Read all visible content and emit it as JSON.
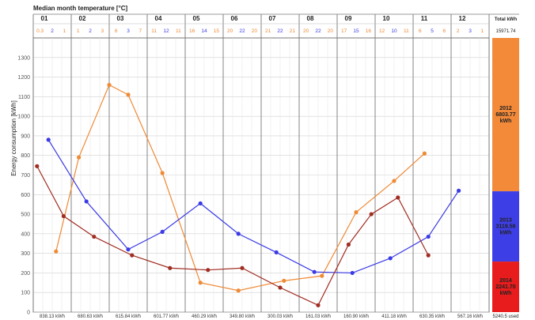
{
  "chart_data": {
    "type": "line",
    "title": "Median month temperature [°C]",
    "ylabel": "Energy consumption [kWh]",
    "ylim": [
      0,
      1400
    ],
    "yticks": [
      0,
      100,
      200,
      300,
      400,
      500,
      600,
      700,
      800,
      900,
      1000,
      1100,
      1200,
      1300
    ],
    "grid": true,
    "categories": [
      "01",
      "02",
      "03",
      "04",
      "05",
      "06",
      "07",
      "08",
      "09",
      "10",
      "11",
      "12"
    ],
    "temperatures": [
      [
        "0.3",
        "2",
        "1"
      ],
      [
        "1",
        "2",
        "3"
      ],
      [
        "6",
        "3",
        "7"
      ],
      [
        "11",
        "12",
        "11"
      ],
      [
        "16",
        "14",
        "15"
      ],
      [
        "20",
        "22",
        "20"
      ],
      [
        "21",
        "22",
        "21"
      ],
      [
        "20",
        "22",
        "20"
      ],
      [
        "17",
        "15",
        "16"
      ],
      [
        "12",
        "10",
        "11"
      ],
      [
        "6",
        "5",
        "6"
      ],
      [
        "2",
        "3",
        "1"
      ]
    ],
    "monthly_totals": [
      "838.13 kWh",
      "680.63 kWh",
      "615.84 kWh",
      "601.77 kWh",
      "460.29 kWh",
      "349.80 kWh",
      "300.03 kWh",
      "161.03 kWh",
      "160.90 kWh",
      "411.18 kWh",
      "630.35 kWh",
      "567.16 kWh"
    ],
    "totals_header": "Total kWh",
    "totals_top": "15971.74",
    "totals_bottom": "5240.5 used",
    "series": [
      {
        "name": "2012",
        "color": "#ef8a35",
        "x": [
          0.6,
          1.2,
          2.0,
          2.5,
          3.4,
          4.4,
          5.4,
          6.6,
          7.6,
          8.5,
          9.5,
          10.3,
          11.3
        ],
        "values": [
          310,
          790,
          1160,
          1110,
          710,
          150,
          110,
          160,
          185,
          510,
          670,
          810,
          null
        ]
      },
      {
        "name": "2013",
        "color": "#3a3ae6",
        "x": [
          0.4,
          1.4,
          2.5,
          3.4,
          4.4,
          5.4,
          6.4,
          7.4,
          8.4,
          9.4,
          10.4,
          11.2
        ],
        "values": [
          880,
          565,
          320,
          410,
          555,
          400,
          305,
          205,
          200,
          275,
          385,
          620
        ]
      },
      {
        "name": "2014",
        "color": "#a02d22",
        "x": [
          0.1,
          0.8,
          1.6,
          2.6,
          3.6,
          4.6,
          5.5,
          6.5,
          7.5,
          8.3,
          8.9,
          9.6,
          10.4,
          11.2
        ],
        "values": [
          745,
          490,
          385,
          290,
          225,
          215,
          225,
          125,
          35,
          345,
          500,
          585,
          290,
          null
        ]
      }
    ],
    "stack": [
      {
        "name": "2012",
        "lines": [
          "2012",
          "6803.77",
          "kWh"
        ],
        "value": 6803.77,
        "color": "#f38a3a"
      },
      {
        "name": "2013",
        "lines": [
          "2013",
          "3118.58",
          "kWh"
        ],
        "value": 3118.58,
        "color": "#3e3ee6"
      },
      {
        "name": "2014",
        "lines": [
          "2014",
          "2241.70",
          "kWh"
        ],
        "value": 2241.7,
        "color": "#e81c1c"
      }
    ]
  }
}
